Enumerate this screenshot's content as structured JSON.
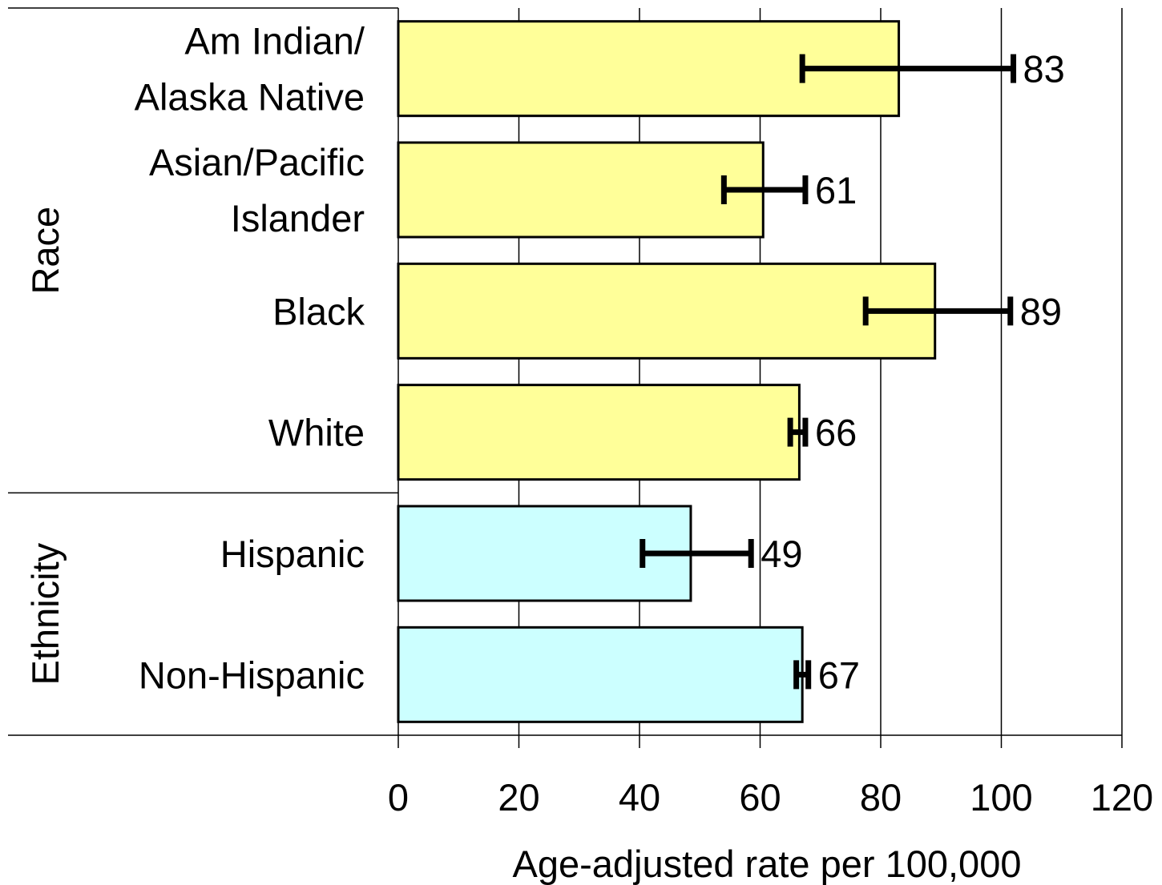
{
  "chart_data": {
    "type": "bar",
    "orientation": "horizontal",
    "xlabel": "Age-adjusted rate per 100,000",
    "xlim": [
      0,
      120
    ],
    "xticks": [
      "0",
      "20",
      "40",
      "60",
      "80",
      "100",
      "120"
    ],
    "grid": "vertical gridlines at each tick",
    "groups": [
      {
        "name": "Race",
        "color": "#FFFF99",
        "categories": [
          {
            "lines": [
              "Am Indian/",
              "Alaska Native"
            ],
            "value": 83,
            "ci_low": 67,
            "ci_high": 102,
            "label": "83"
          },
          {
            "lines": [
              "Asian/Pacific",
              "Islander"
            ],
            "value": 60.5,
            "ci_low": 54,
            "ci_high": 67.5,
            "label": "61"
          },
          {
            "lines": [
              "Black"
            ],
            "value": 89,
            "ci_low": 77.5,
            "ci_high": 101.5,
            "label": "89"
          },
          {
            "lines": [
              "White"
            ],
            "value": 66.5,
            "ci_low": 65,
            "ci_high": 67.5,
            "label": "66"
          }
        ]
      },
      {
        "name": "Ethnicity",
        "color": "#CCFFFF",
        "categories": [
          {
            "lines": [
              "Hispanic"
            ],
            "value": 48.5,
            "ci_low": 40.5,
            "ci_high": 58.5,
            "label": "49"
          },
          {
            "lines": [
              "Non-Hispanic"
            ],
            "value": 67,
            "ci_low": 66,
            "ci_high": 68,
            "label": "67"
          }
        ]
      }
    ]
  }
}
